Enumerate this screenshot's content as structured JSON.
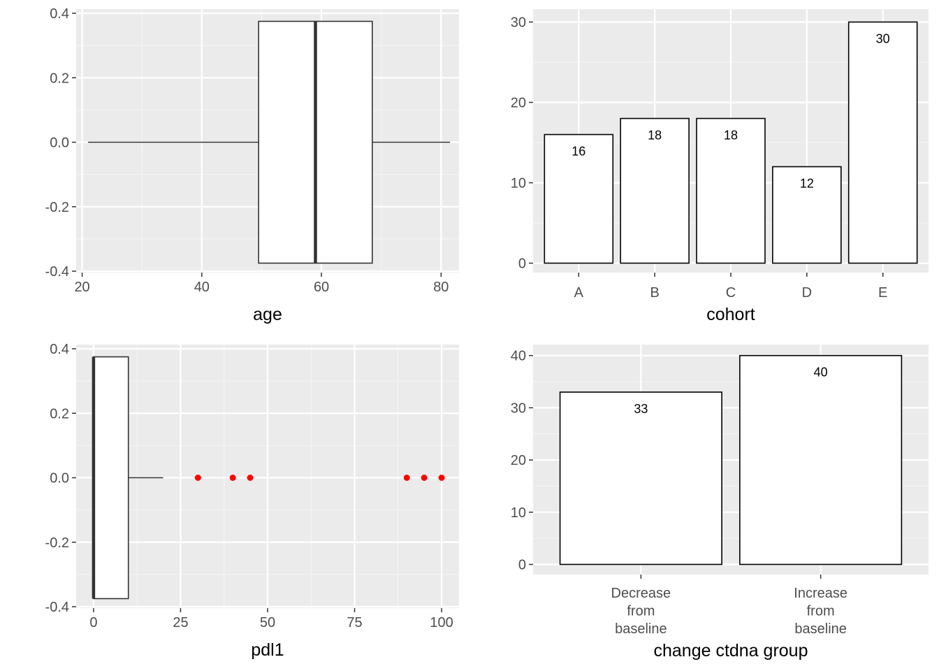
{
  "chart_data": [
    {
      "type": "boxplot",
      "xlabel": "age",
      "xlim": [
        19,
        83
      ],
      "x_ticks": [
        20,
        40,
        60,
        80
      ],
      "ylim": [
        -0.4,
        0.4
      ],
      "y_ticks": [
        "-0.4",
        "-0.2",
        "0.0",
        "0.2",
        "0.4"
      ],
      "box": {
        "min": 21,
        "q1": 49.5,
        "median": 59,
        "q3": 68.5,
        "max": 81.5
      },
      "outliers": []
    },
    {
      "type": "bar",
      "xlabel": "cohort",
      "categories": [
        "A",
        "B",
        "C",
        "D",
        "E"
      ],
      "values": [
        16,
        18,
        18,
        12,
        30
      ],
      "ylim": [
        0,
        31.5
      ],
      "y_ticks": [
        0,
        10,
        20,
        30
      ]
    },
    {
      "type": "boxplot",
      "xlabel": "pdl1",
      "xlim": [
        -5,
        105
      ],
      "x_ticks": [
        0,
        25,
        50,
        75,
        100
      ],
      "ylim": [
        -0.4,
        0.4
      ],
      "y_ticks": [
        "-0.4",
        "-0.2",
        "0.0",
        "0.2",
        "0.4"
      ],
      "box": {
        "min": 0,
        "q1": 0,
        "median": 0,
        "q3": 10,
        "max": 20
      },
      "outliers": [
        30,
        40,
        45,
        90,
        95,
        100
      ],
      "outlier_color": "#ff0000"
    },
    {
      "type": "bar",
      "xlabel": "change ctdna group",
      "categories": [
        [
          "Decrease",
          "from",
          "baseline"
        ],
        [
          "Increase",
          "from",
          "baseline"
        ]
      ],
      "values": [
        33,
        40
      ],
      "ylim": [
        -2,
        42
      ],
      "y_ticks": [
        0,
        10,
        20,
        30,
        40
      ]
    }
  ],
  "colors": {
    "panel": "#ebebeb",
    "grid_major": "#ffffff",
    "grid_minor": "#f5f5f5",
    "fill": "#ffffff",
    "stroke": "#000000",
    "box_stroke": "#333333",
    "tick_text": "#4d4d4d",
    "outlier": "#ff0000"
  }
}
